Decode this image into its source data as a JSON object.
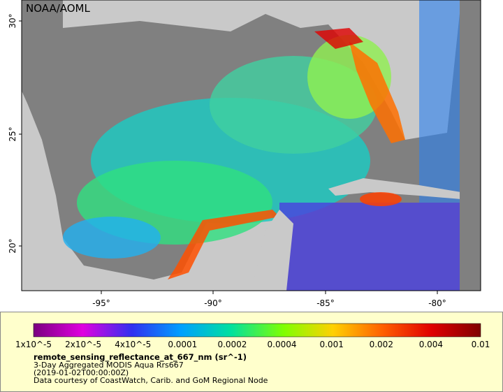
{
  "map": {
    "watermark": "NOAA/AOML",
    "lat_labels": [
      "30°",
      "25°",
      "20°"
    ],
    "lon_labels": [
      "-95°",
      "-90°",
      "-85°",
      "-80°"
    ]
  },
  "legend": {
    "tick_labels": [
      "1x10^-5",
      "2x10^-5",
      "4x10^-5",
      "0.0001",
      "0.0002",
      "0.0004",
      "0.001",
      "0.002",
      "0.004",
      "0.01"
    ],
    "variable": "remote_sensing_reflectance_at_667_nm (sr^-1)",
    "lines": [
      "3-Day Aggregated MODIS Aqua Rrs667",
      "(2019-01-02T00:00:00Z)",
      "Data courtesy of CoastWatch, Carib. and GoM Regional Node"
    ]
  }
}
